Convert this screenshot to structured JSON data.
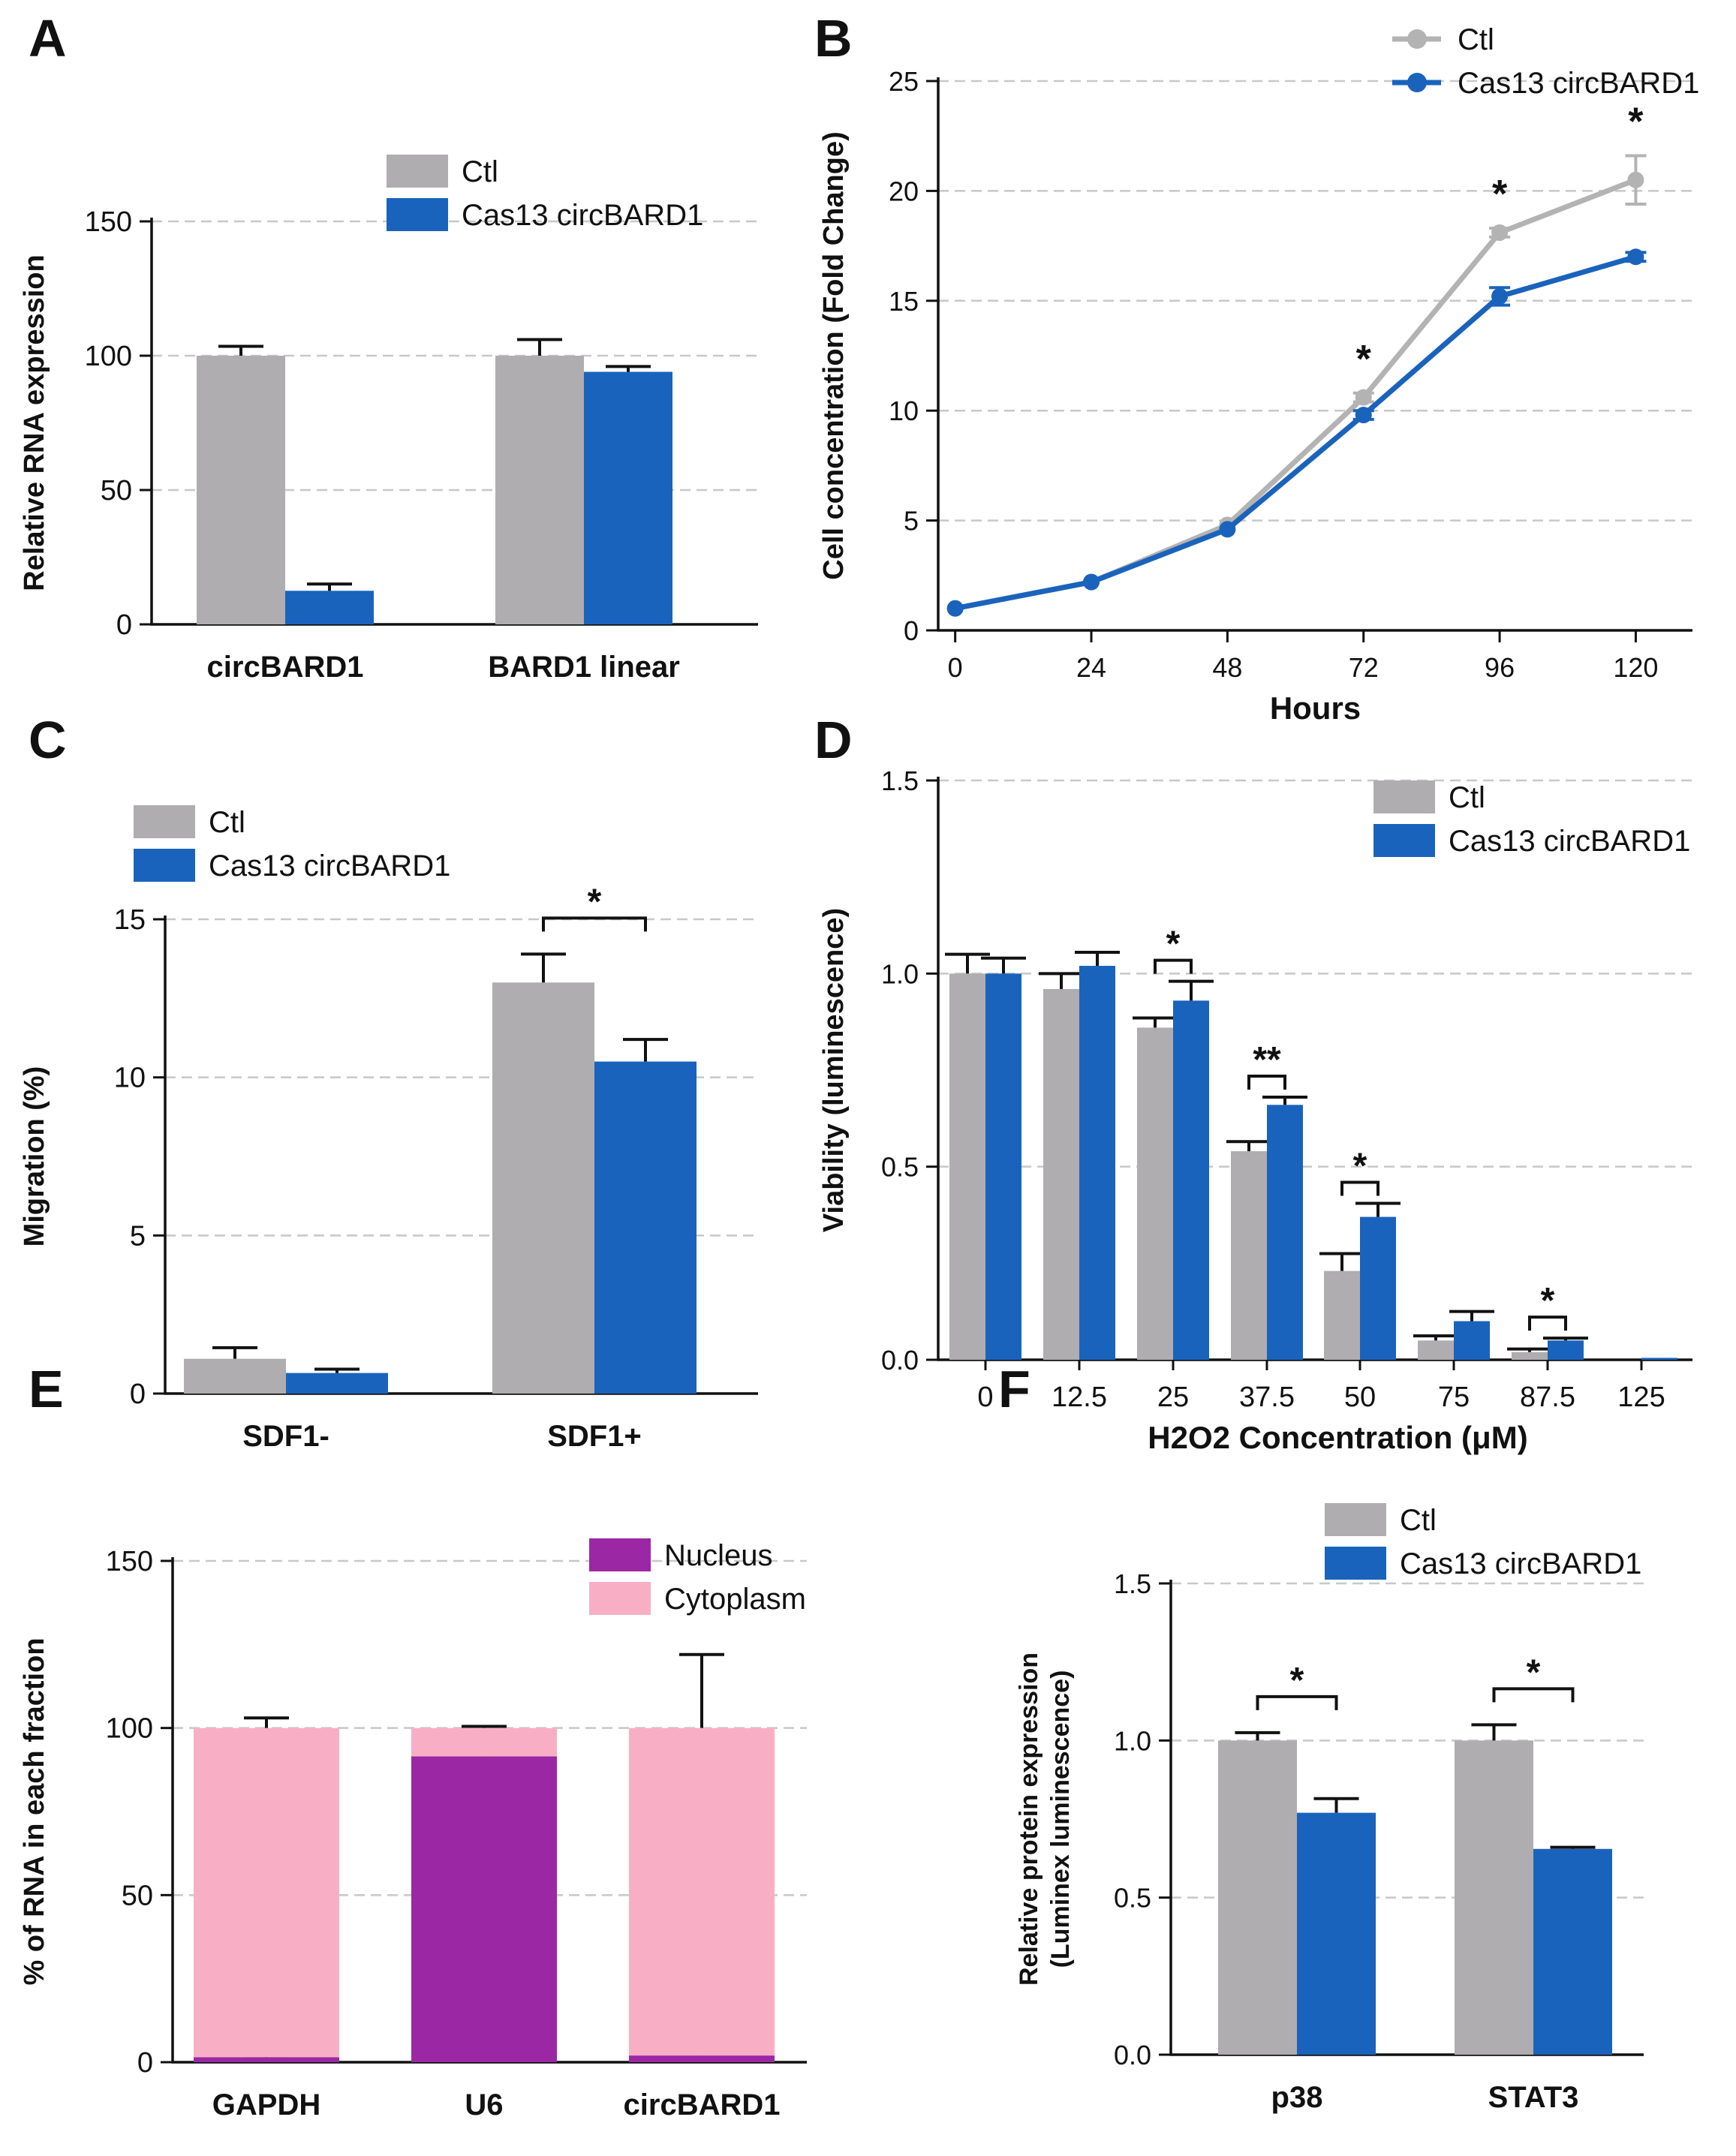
{
  "colors": {
    "ctl": "#afadb0",
    "cas13": "#1a63bc",
    "ctl_line": "#b3b3b3",
    "nucleus": "#9b27a4",
    "cytoplasm": "#f8afc6",
    "axis": "#111111",
    "grid": "#c8c8c8"
  },
  "chart_data": [
    {
      "panel": "A",
      "type": "bar",
      "title": "",
      "xlabel": "",
      "ylabel": "Relative RNA expression",
      "ylim": [
        0,
        150
      ],
      "yticks": [
        "0",
        "50",
        "100",
        "150"
      ],
      "categories": [
        "circBARD1",
        "BARD1 linear"
      ],
      "series": [
        {
          "name": "Ctl",
          "color_key": "ctl",
          "values": [
            100,
            100
          ],
          "errors": [
            3.5,
            6
          ]
        },
        {
          "name": "Cas13 circBARD1",
          "color_key": "cas13",
          "values": [
            12.5,
            94
          ],
          "errors": [
            2.5,
            2
          ]
        }
      ],
      "legend": [
        "Ctl",
        "Cas13 circBARD1"
      ],
      "grid": true
    },
    {
      "panel": "B",
      "type": "line",
      "xlabel": "Hours",
      "ylabel": "Cell concentration (Fold Change)",
      "x": [
        0,
        24,
        48,
        72,
        96,
        120
      ],
      "xticks": [
        "0",
        "24",
        "48",
        "72",
        "96",
        "120"
      ],
      "ylim": [
        0,
        25
      ],
      "yticks": [
        "0",
        "5",
        "10",
        "15",
        "20",
        "25"
      ],
      "series": [
        {
          "name": "Ctl",
          "color_key": "ctl_line",
          "values": [
            1,
            2.2,
            4.8,
            10.6,
            18.1,
            20.5
          ],
          "errors": [
            0,
            0,
            0,
            0.2,
            0.2,
            1.1
          ]
        },
        {
          "name": "Cas13 circBARD1",
          "color_key": "cas13",
          "values": [
            1,
            2.2,
            4.6,
            9.8,
            15.2,
            17
          ],
          "errors": [
            0,
            0,
            0,
            0.2,
            0.4,
            0.2
          ]
        }
      ],
      "annotations": [
        {
          "text": "*",
          "x": 72
        },
        {
          "text": "*",
          "x": 96
        },
        {
          "text": "*",
          "x": 120
        }
      ],
      "legend": [
        "Ctl",
        "Cas13 circBARD1"
      ],
      "grid": true
    },
    {
      "panel": "C",
      "type": "bar",
      "xlabel": "",
      "ylabel": "Migration (%)",
      "ylim": [
        0,
        15
      ],
      "yticks": [
        "0",
        "5",
        "10",
        "15"
      ],
      "categories": [
        "SDF1-",
        "SDF1+"
      ],
      "series": [
        {
          "name": "Ctl",
          "color_key": "ctl",
          "values": [
            1.1,
            13
          ],
          "errors": [
            0.35,
            0.9
          ]
        },
        {
          "name": "Cas13 circBARD1",
          "color_key": "cas13",
          "values": [
            0.65,
            10.5
          ],
          "errors": [
            0.12,
            0.7
          ]
        }
      ],
      "significance": [
        {
          "category": "SDF1+",
          "text": "*"
        }
      ],
      "legend": [
        "Ctl",
        "Cas13 circBARD1"
      ],
      "grid": true
    },
    {
      "panel": "D",
      "type": "bar",
      "xlabel": "H2O2 Concentration (μM)",
      "ylabel": "Viability (luminescence)",
      "ylim": [
        0,
        1.5
      ],
      "yticks": [
        "0.0",
        "0.5",
        "1.0",
        "1.5"
      ],
      "categories": [
        "0",
        "12.5",
        "25",
        "37.5",
        "50",
        "75",
        "87.5",
        "125"
      ],
      "series": [
        {
          "name": "Ctl",
          "color_key": "ctl",
          "values": [
            1.0,
            0.96,
            0.86,
            0.54,
            0.23,
            0.05,
            0.02,
            0.0
          ],
          "errors": [
            0.05,
            0.04,
            0.025,
            0.025,
            0.045,
            0.012,
            0.008,
            0
          ]
        },
        {
          "name": "Cas13 circBARD1",
          "color_key": "cas13",
          "values": [
            1.0,
            1.02,
            0.93,
            0.66,
            0.37,
            0.1,
            0.05,
            0.005
          ],
          "errors": [
            0.04,
            0.035,
            0.05,
            0.02,
            0.035,
            0.025,
            0.006,
            0
          ]
        }
      ],
      "significance": [
        {
          "category": "25",
          "text": "*"
        },
        {
          "category": "37.5",
          "text": "**"
        },
        {
          "category": "50",
          "text": "*"
        },
        {
          "category": "87.5",
          "text": "*"
        }
      ],
      "legend": [
        "Ctl",
        "Cas13 circBARD1"
      ],
      "grid": true
    },
    {
      "panel": "E",
      "type": "bar",
      "stacked": true,
      "xlabel": "",
      "ylabel": "% of RNA in each fraction",
      "ylim": [
        0,
        150
      ],
      "yticks": [
        "0",
        "50",
        "100",
        "150"
      ],
      "categories": [
        "GAPDH",
        "U6",
        "circBARD1"
      ],
      "series": [
        {
          "name": "Nucleus",
          "color_key": "nucleus",
          "values": [
            1.5,
            91.5,
            2
          ],
          "errors": [
            0.5,
            2.5,
            0.8
          ]
        },
        {
          "name": "Cytoplasm",
          "color_key": "cytoplasm",
          "values": [
            98.5,
            8.5,
            98
          ],
          "errors": [
            3,
            0.5,
            22
          ]
        }
      ],
      "legend": [
        "Nucleus",
        "Cytoplasm"
      ],
      "grid": true
    },
    {
      "panel": "F",
      "type": "bar",
      "xlabel": "",
      "ylabel": "Relative protein expression",
      "ylabel2": "(Luminex luminescence)",
      "ylim": [
        0,
        1.5
      ],
      "yticks": [
        "0.0",
        "0.5",
        "1.0",
        "1.5"
      ],
      "categories": [
        "p38",
        "STAT3"
      ],
      "series": [
        {
          "name": "Ctl",
          "color_key": "ctl",
          "values": [
            1.0,
            1.0
          ],
          "errors": [
            0.025,
            0.05
          ]
        },
        {
          "name": "Cas13 circBARD1",
          "color_key": "cas13",
          "values": [
            0.77,
            0.655
          ],
          "errors": [
            0.045,
            0.005
          ]
        }
      ],
      "significance": [
        {
          "category": "p38",
          "text": "*"
        },
        {
          "category": "STAT3",
          "text": "*"
        }
      ],
      "legend": [
        "Ctl",
        "Cas13 circBARD1"
      ],
      "grid": true
    }
  ]
}
